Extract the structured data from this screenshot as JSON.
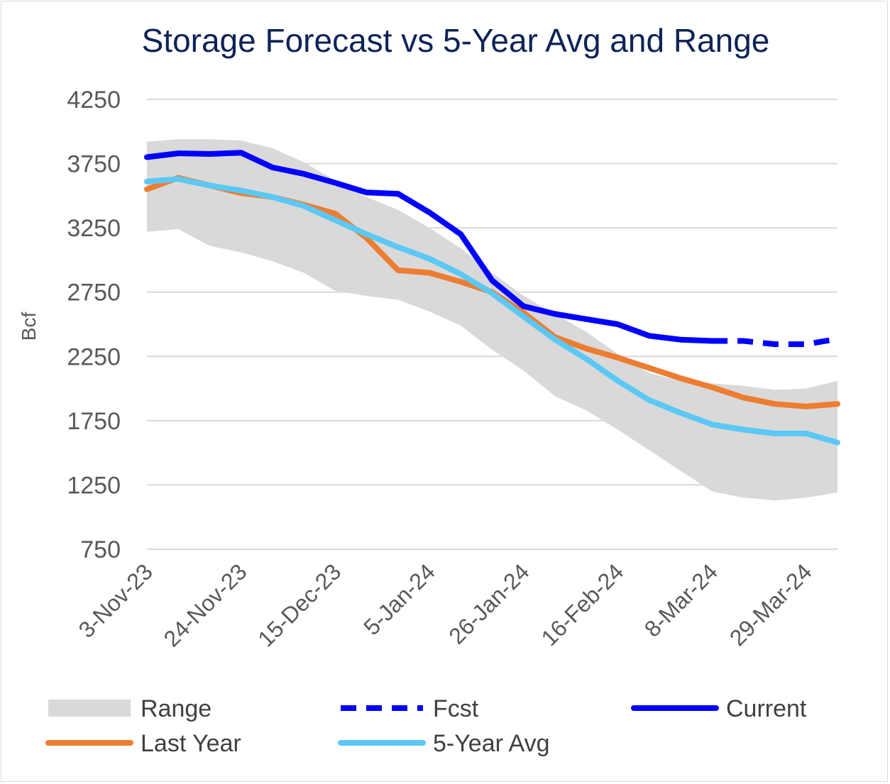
{
  "chart_data": {
    "type": "line",
    "title": "Storage Forecast vs 5-Year Avg and Range",
    "xlabel": "",
    "ylabel": "Bcf",
    "ylim": [
      750,
      4250
    ],
    "yticks": [
      4250,
      3750,
      3250,
      2750,
      2250,
      1750,
      1250,
      750
    ],
    "grid": true,
    "legend_position": "bottom",
    "x_tick_labels": [
      "3-Nov-23",
      "24-Nov-23",
      "15-Dec-23",
      "5-Jan-24",
      "26-Jan-24",
      "16-Feb-24",
      "8-Mar-24",
      "29-Mar-24"
    ],
    "x": [
      "3-Nov-23",
      "10-Nov-23",
      "17-Nov-23",
      "24-Nov-23",
      "1-Dec-23",
      "8-Dec-23",
      "15-Dec-23",
      "22-Dec-23",
      "29-Dec-23",
      "5-Jan-24",
      "12-Jan-24",
      "19-Jan-24",
      "26-Jan-24",
      "2-Feb-24",
      "9-Feb-24",
      "16-Feb-24",
      "23-Feb-24",
      "1-Mar-24",
      "8-Mar-24",
      "15-Mar-24",
      "22-Mar-24",
      "29-Mar-24",
      "5-Apr-24"
    ],
    "range": {
      "name": "Range",
      "upper": [
        3920,
        3940,
        3940,
        3930,
        3870,
        3760,
        3620,
        3490,
        3390,
        3250,
        3090,
        2900,
        2720,
        2580,
        2440,
        2270,
        2120,
        2060,
        2040,
        2020,
        1990,
        2000,
        2060
      ],
      "lower": [
        3220,
        3240,
        3110,
        3060,
        2990,
        2900,
        2760,
        2720,
        2690,
        2600,
        2490,
        2300,
        2140,
        1940,
        1830,
        1680,
        1520,
        1360,
        1200,
        1150,
        1130,
        1150,
        1190
      ]
    },
    "series": [
      {
        "name": "Current",
        "color": "#0000ff",
        "style": "solid",
        "values": [
          3800,
          3830,
          3825,
          3835,
          3720,
          3670,
          3600,
          3525,
          3515,
          3370,
          3200,
          2840,
          2640,
          2580,
          2540,
          2500,
          2410,
          2380,
          2370,
          null,
          null,
          null,
          null
        ]
      },
      {
        "name": "Fcst",
        "color": "#0000ff",
        "style": "dashed",
        "values": [
          null,
          null,
          null,
          null,
          null,
          null,
          null,
          null,
          null,
          null,
          null,
          null,
          null,
          null,
          null,
          null,
          null,
          null,
          2370,
          2370,
          2345,
          2345,
          2385
        ]
      },
      {
        "name": "Last Year",
        "color": "#ed7d31",
        "style": "solid",
        "values": [
          3550,
          3640,
          3580,
          3520,
          3490,
          3430,
          3360,
          3170,
          2920,
          2900,
          2830,
          2750,
          2590,
          2400,
          2310,
          2240,
          2160,
          2080,
          2010,
          1930,
          1880,
          1860,
          1880
        ]
      },
      {
        "name": "5-Year Avg",
        "color": "#5bc8f5",
        "style": "solid",
        "values": [
          3610,
          3630,
          3580,
          3540,
          3490,
          3420,
          3310,
          3200,
          3100,
          3010,
          2890,
          2740,
          2560,
          2380,
          2230,
          2060,
          1910,
          1810,
          1720,
          1680,
          1650,
          1650,
          1580
        ]
      }
    ],
    "legend": [
      {
        "label": "Range",
        "kind": "band",
        "color": "#d9d9d9"
      },
      {
        "label": "Fcst",
        "kind": "dashed",
        "color": "#0000ff"
      },
      {
        "label": "Current",
        "kind": "solid",
        "color": "#0000ff"
      },
      {
        "label": "Last Year",
        "kind": "solid",
        "color": "#ed7d31"
      },
      {
        "label": "5-Year Avg",
        "kind": "solid",
        "color": "#5bc8f5"
      }
    ],
    "colors": {
      "title": "#0d2358",
      "grid": "#d9d9d9",
      "tick": "#595959",
      "range": "#d9d9d9"
    }
  }
}
